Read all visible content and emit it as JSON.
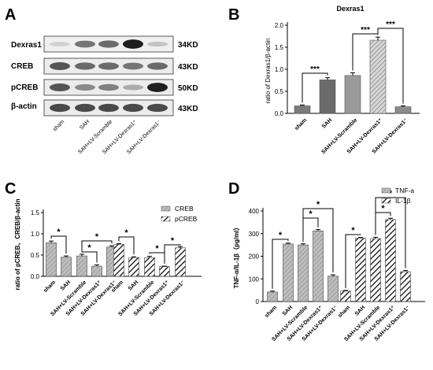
{
  "figure": {
    "panels": {
      "A": {
        "letter": "A",
        "rows": [
          {
            "name": "Dexras1",
            "kd": "34KD",
            "intensity": [
              0.12,
              0.55,
              0.6,
              0.95,
              0.18
            ]
          },
          {
            "name": "CREB",
            "kd": "43KD",
            "intensity": [
              0.7,
              0.6,
              0.6,
              0.55,
              0.6
            ]
          },
          {
            "name": "pCREB",
            "kd": "50KD",
            "intensity": [
              0.7,
              0.45,
              0.5,
              0.3,
              0.95
            ]
          },
          {
            "name": "β-actin",
            "kd": "43KD",
            "intensity": [
              0.75,
              0.75,
              0.75,
              0.75,
              0.75
            ]
          }
        ],
        "lanes": [
          "sham",
          "SAH",
          "SAH+LV-Scramble",
          "SAH+LV-Dexras1⁺",
          "SAH+LV-Dexras1⁻"
        ]
      },
      "B": {
        "letter": "B"
      },
      "C": {
        "letter": "C"
      },
      "D": {
        "letter": "D"
      }
    }
  },
  "chart_data": [
    {
      "panel": "B",
      "type": "bar",
      "title": "Dexras1",
      "ylabel": "ratio of Dexras1/β-actin",
      "ylim": [
        0,
        2.0
      ],
      "yticks": [
        "0.0",
        "0.5",
        "1.0",
        "1.5",
        "2.0"
      ],
      "categories": [
        "sham",
        "SAH",
        "SAH+LV-Scramble",
        "SAH+LV-Dexras1⁺",
        "SAH+LV-Dexras1⁻"
      ],
      "values": [
        0.17,
        0.76,
        0.86,
        1.66,
        0.15
      ],
      "errors": [
        0.02,
        0.05,
        0.06,
        0.07,
        0.02
      ],
      "significance": [
        {
          "from": 0,
          "to": 1,
          "label": "***"
        },
        {
          "from": 2,
          "to": 3,
          "label": "***"
        },
        {
          "from": 3,
          "to": 4,
          "label": "***"
        }
      ]
    },
    {
      "panel": "C",
      "type": "bar",
      "ylabel": "ratio of pCREB、CREB/β-actin",
      "ylim": [
        0,
        1.5
      ],
      "yticks": [
        "0.0",
        "0.5",
        "1.0",
        "1.5"
      ],
      "legend": "top-right",
      "categories": [
        "sham",
        "SAH",
        "SAH+LV-Scramble",
        "SAH+LV-Dexras1⁺",
        "SAH+LV-Dexras1⁻"
      ],
      "series": [
        {
          "name": "CREB",
          "values": [
            0.79,
            0.45,
            0.48,
            0.24,
            0.69
          ],
          "errors": [
            0.04,
            0.03,
            0.04,
            0.03,
            0.03
          ]
        },
        {
          "name": "pCREB",
          "values": [
            0.75,
            0.44,
            0.44,
            0.23,
            0.67
          ],
          "errors": [
            0.02,
            0.02,
            0.03,
            0.01,
            0.03
          ]
        }
      ],
      "significance": [
        {
          "series": 0,
          "from": 0,
          "to": 1,
          "label": "*"
        },
        {
          "series": 0,
          "from": 2,
          "to": 3,
          "label": "*"
        },
        {
          "series": 0,
          "from": 2,
          "to": 4,
          "label": "*"
        },
        {
          "series": 1,
          "from": 0,
          "to": 1,
          "label": "*"
        },
        {
          "series": 1,
          "from": 2,
          "to": 3,
          "label": "*"
        },
        {
          "series": 1,
          "from": 3,
          "to": 4,
          "label": "*"
        }
      ]
    },
    {
      "panel": "D",
      "type": "bar",
      "ylabel": "TNF-α/IL-1β（pg/ml）",
      "ylim": [
        0,
        400
      ],
      "yticks": [
        "0",
        "100",
        "200",
        "300",
        "400"
      ],
      "legend": "top-right",
      "categories": [
        "sham",
        "SAH",
        "SAH+LV-Scramble",
        "SAH+LV-Dexras1⁺",
        "SAH+LV-Dexras1⁻"
      ],
      "series": [
        {
          "name": "TNF-a",
          "values": [
            42,
            254,
            250,
            312,
            112
          ],
          "errors": [
            4,
            4,
            5,
            6,
            6
          ]
        },
        {
          "name": "IL-1β",
          "values": [
            46,
            280,
            278,
            362,
            132
          ],
          "errors": [
            3,
            3,
            6,
            6,
            5
          ]
        }
      ],
      "significance": [
        {
          "series": 0,
          "from": 0,
          "to": 1,
          "label": "*"
        },
        {
          "series": 0,
          "from": 2,
          "to": 3,
          "label": "*"
        },
        {
          "series": 0,
          "from": 2,
          "to": 4,
          "label": "*"
        },
        {
          "series": 1,
          "from": 0,
          "to": 1,
          "label": "*"
        },
        {
          "series": 1,
          "from": 2,
          "to": 3,
          "label": "*"
        },
        {
          "series": 1,
          "from": 2,
          "to": 4,
          "label": "*"
        }
      ]
    }
  ]
}
